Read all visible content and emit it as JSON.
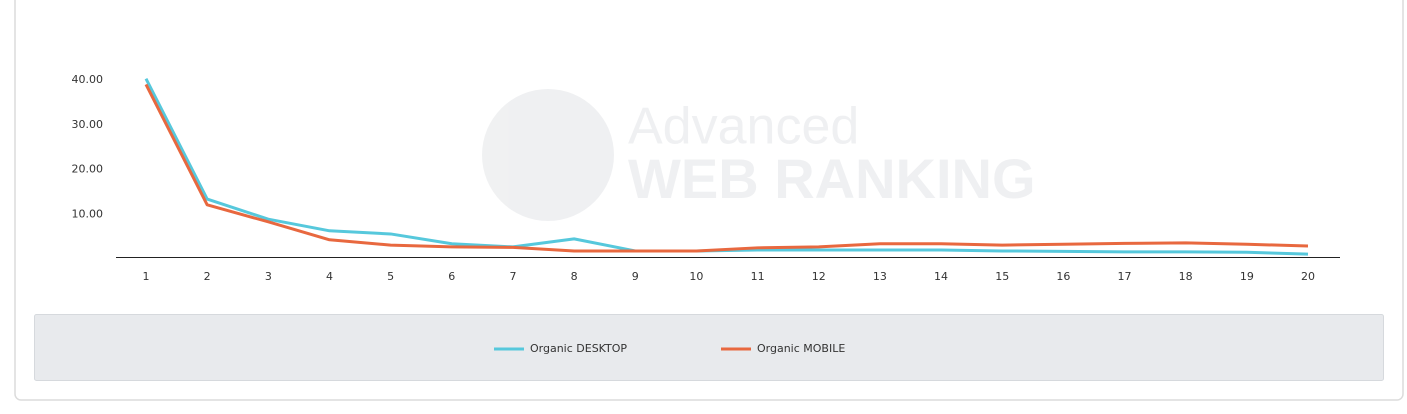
{
  "chart_data": {
    "type": "line",
    "watermark": [
      "Advanced",
      "WEB RANKING"
    ],
    "categories": [
      "1",
      "2",
      "3",
      "4",
      "5",
      "6",
      "7",
      "8",
      "9",
      "10",
      "11",
      "12",
      "13",
      "14",
      "15",
      "16",
      "17",
      "18",
      "19",
      "20"
    ],
    "series": [
      {
        "name": "Organic DESKTOP",
        "color": "#56c8dc",
        "values": [
          40.3,
          13.4,
          8.9,
          6.3,
          5.6,
          3.4,
          2.7,
          4.5,
          1.8,
          1.8,
          2.0,
          2.0,
          2.0,
          2.0,
          1.8,
          1.7,
          1.6,
          1.6,
          1.5,
          1.1
        ]
      },
      {
        "name": "Organic MOBILE",
        "color": "#e8683f",
        "values": [
          39.0,
          12.1,
          8.3,
          4.3,
          3.1,
          2.7,
          2.6,
          1.8,
          1.8,
          1.8,
          2.5,
          2.7,
          3.4,
          3.4,
          3.1,
          3.3,
          3.5,
          3.6,
          3.3,
          2.9
        ]
      }
    ],
    "ylim": [
      0,
      40
    ],
    "yticks": [
      {
        "value": 10,
        "label": "10.00"
      },
      {
        "value": 20,
        "label": "20.00"
      },
      {
        "value": 30,
        "label": "30.00"
      },
      {
        "value": 40,
        "label": "40.00"
      }
    ]
  }
}
